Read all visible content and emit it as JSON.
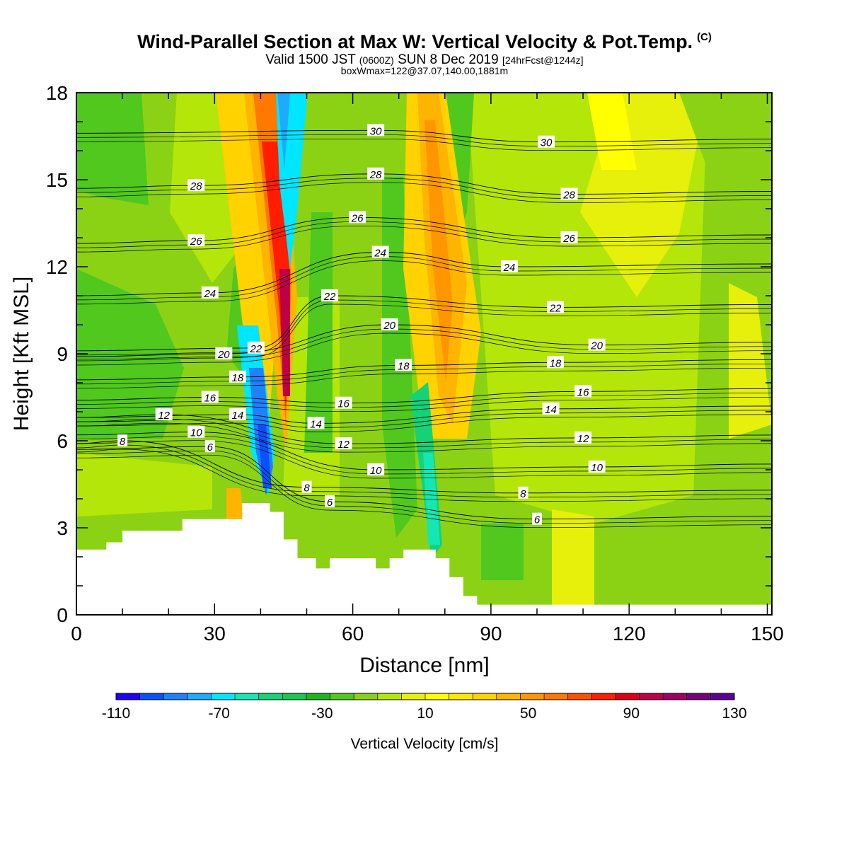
{
  "title": {
    "main": "Wind-Parallel Section at Max W: Vertical Velocity & Pot.Temp.",
    "copyright": "(C)",
    "valid_prefix": "Valid 1500 JST",
    "valid_z": "(0600Z)",
    "valid_date": "SUN 8 Dec 2019",
    "forecast": "[24hrFcst@1244z]",
    "boxline": "boxWmax=122@37.07,140.00,1881m"
  },
  "chart_data": {
    "type": "heatmap",
    "xlabel": "Distance [nm]",
    "ylabel": "Height [Kft MSL]",
    "xlim": [
      0,
      151
    ],
    "ylim": [
      0,
      18
    ],
    "xticks": [
      0,
      30,
      60,
      90,
      120,
      150
    ],
    "yticks": [
      0,
      3,
      6,
      9,
      12,
      15,
      18
    ],
    "colorbar": {
      "label": "Vertical Velocity [cm/s]",
      "tick_values": [
        -110,
        -70,
        -30,
        10,
        50,
        90,
        130
      ],
      "tick_labels": [
        "-110",
        "-70",
        "-30",
        "10",
        "50",
        "90",
        "130"
      ],
      "colors": [
        "#1e00ff",
        "#0a50ff",
        "#1e82ff",
        "#1eaaff",
        "#00e6ff",
        "#14e6b4",
        "#14d278",
        "#14c850",
        "#1eb41e",
        "#50c81e",
        "#8cd214",
        "#b4e60a",
        "#e6f00a",
        "#ffff00",
        "#ffe600",
        "#ffd200",
        "#ffb400",
        "#ff9600",
        "#ff7800",
        "#ff5000",
        "#ff1e00",
        "#dc0014",
        "#be0046",
        "#a00064",
        "#780078",
        "#5a0096"
      ]
    },
    "terrain_profile": [
      [
        0,
        2.25
      ],
      [
        6.5,
        2.25
      ],
      [
        6.5,
        2.5
      ],
      [
        10,
        2.5
      ],
      [
        10,
        2.9
      ],
      [
        23,
        2.9
      ],
      [
        23,
        3.3
      ],
      [
        36,
        3.3
      ],
      [
        36,
        3.85
      ],
      [
        42,
        3.85
      ],
      [
        42,
        3.55
      ],
      [
        45,
        3.55
      ],
      [
        45,
        2.6
      ],
      [
        48,
        2.6
      ],
      [
        48,
        1.95
      ],
      [
        52,
        1.95
      ],
      [
        52,
        1.6
      ],
      [
        55,
        1.6
      ],
      [
        55,
        1.95
      ],
      [
        65,
        1.95
      ],
      [
        65,
        1.6
      ],
      [
        68,
        1.6
      ],
      [
        68,
        1.95
      ],
      [
        71,
        1.95
      ],
      [
        71,
        2.25
      ],
      [
        78,
        2.25
      ],
      [
        78,
        1.95
      ],
      [
        81,
        1.95
      ],
      [
        81,
        1.3
      ],
      [
        84,
        1.3
      ],
      [
        84,
        0.65
      ],
      [
        87,
        0.65
      ],
      [
        87,
        0.35
      ],
      [
        151,
        0.35
      ]
    ],
    "theta_contours": [
      {
        "level": "6",
        "labels": [
          [
            29,
            5.8
          ],
          [
            55,
            3.9
          ],
          [
            100,
            3.3
          ]
        ]
      },
      {
        "level": "8",
        "labels": [
          [
            10,
            6.0
          ],
          [
            50,
            4.4
          ],
          [
            97,
            4.2
          ]
        ]
      },
      {
        "level": "10",
        "labels": [
          [
            26,
            6.3
          ],
          [
            65,
            5.0
          ],
          [
            113,
            5.1
          ]
        ]
      },
      {
        "level": "12",
        "labels": [
          [
            19,
            6.9
          ],
          [
            58,
            5.9
          ],
          [
            110,
            6.1
          ]
        ]
      },
      {
        "level": "14",
        "labels": [
          [
            35,
            6.9
          ],
          [
            52,
            6.6
          ],
          [
            103,
            7.1
          ]
        ]
      },
      {
        "level": "16",
        "labels": [
          [
            29,
            7.5
          ],
          [
            58,
            7.3
          ],
          [
            110,
            7.7
          ]
        ]
      },
      {
        "level": "18",
        "labels": [
          [
            35,
            8.2
          ],
          [
            71,
            8.6
          ],
          [
            104,
            8.7
          ]
        ]
      },
      {
        "level": "20",
        "labels": [
          [
            32,
            9.0
          ],
          [
            68,
            10.0
          ],
          [
            113,
            9.3
          ]
        ]
      },
      {
        "level": "22",
        "labels": [
          [
            39,
            9.2
          ],
          [
            55,
            11.0
          ],
          [
            104,
            10.6
          ]
        ]
      },
      {
        "level": "24",
        "labels": [
          [
            29,
            11.1
          ],
          [
            66,
            12.5
          ],
          [
            94,
            12.0
          ]
        ]
      },
      {
        "level": "26",
        "labels": [
          [
            26,
            12.9
          ],
          [
            61,
            13.7
          ],
          [
            107,
            13.0
          ]
        ]
      },
      {
        "level": "28",
        "labels": [
          [
            26,
            14.8
          ],
          [
            65,
            15.2
          ],
          [
            107,
            14.5
          ]
        ]
      },
      {
        "level": "30",
        "labels": [
          [
            65,
            16.7
          ],
          [
            102,
            16.3
          ]
        ]
      }
    ]
  }
}
